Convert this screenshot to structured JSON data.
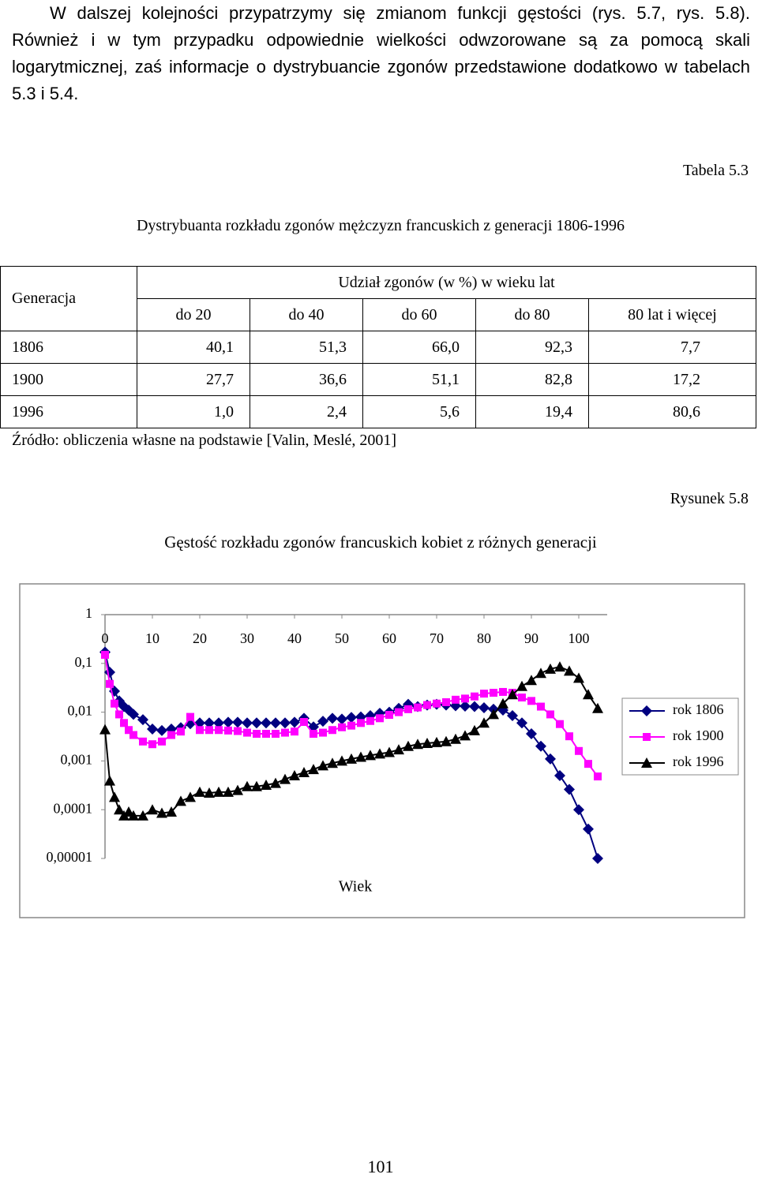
{
  "paragraph": "W dalszej kolejności przypatrzymy się zmianom funkcji gęstości (rys. 5.7, rys. 5.8). Również i w tym przypadku odpowiednie wielkości odwzorowane są za pomocą skali logarytmicznej, zaś informacje o dystrybuancie zgonów przedstawione dodatkowo w tabelach 5.3 i 5.4.",
  "table_label": "Tabela 5.3",
  "table_title": "Dystrybuanta rozkładu zgonów mężczyzn francuskich z generacji 1806-1996",
  "table": {
    "header": {
      "generation": "Generacja",
      "group": "Udział zgonów (w %) w wieku lat",
      "columns": [
        "do 20",
        "do 40",
        "do 60",
        "do 80",
        "80 lat i więcej"
      ]
    },
    "rows": [
      [
        "1806",
        "40,1",
        "51,3",
        "66,0",
        "92,3",
        "7,7"
      ],
      [
        "1900",
        "27,7",
        "36,6",
        "51,1",
        "82,8",
        "17,2"
      ],
      [
        "1996",
        "1,0",
        "2,4",
        "5,6",
        "19,4",
        "80,6"
      ]
    ]
  },
  "source": "Źródło: obliczenia własne na podstawie [Valin, Meslé, 2001]",
  "figure_label": "Rysunek 5.8",
  "chart_data": {
    "type": "line",
    "title": "Gęstość rozkładu zgonów francuskich kobiet z różnych generacji",
    "xlabel": "Wiek",
    "x": [
      0,
      1,
      2,
      3,
      4,
      5,
      6,
      8,
      10,
      12,
      14,
      16,
      18,
      20,
      22,
      24,
      26,
      28,
      30,
      32,
      34,
      36,
      38,
      40,
      42,
      44,
      46,
      48,
      50,
      52,
      54,
      56,
      58,
      60,
      62,
      64,
      66,
      68,
      70,
      72,
      74,
      76,
      78,
      80,
      82,
      84,
      86,
      88,
      90,
      92,
      94,
      96,
      98,
      100,
      102,
      104
    ],
    "xlim": [
      0,
      106
    ],
    "xticks": [
      0,
      10,
      20,
      30,
      40,
      50,
      60,
      70,
      80,
      90,
      100
    ],
    "ylim": [
      1e-05,
      1
    ],
    "log_y": true,
    "yticks": [
      1,
      {
        "value": 0.1,
        "label": "0,1"
      },
      {
        "value": 0.01,
        "label": "0,01"
      },
      {
        "value": 0.001,
        "label": "0,001"
      },
      {
        "value": 0.0001,
        "label": "0,0001"
      },
      {
        "value": 1e-05,
        "label": "0,00001"
      }
    ],
    "legend": "right",
    "series": [
      {
        "name": "rok 1806",
        "color": "#000080",
        "marker": "diamond",
        "values": [
          0.17,
          0.066,
          0.027,
          0.017,
          0.013,
          0.011,
          0.009,
          0.007,
          0.0045,
          0.0042,
          0.0045,
          0.0048,
          0.0058,
          0.006,
          0.006,
          0.006,
          0.0062,
          0.0062,
          0.006,
          0.006,
          0.006,
          0.006,
          0.006,
          0.0062,
          0.0075,
          0.005,
          0.0065,
          0.0075,
          0.0072,
          0.0078,
          0.008,
          0.0085,
          0.0095,
          0.01,
          0.012,
          0.0145,
          0.013,
          0.014,
          0.0145,
          0.014,
          0.0135,
          0.0133,
          0.013,
          0.0123,
          0.0115,
          0.011,
          0.0085,
          0.006,
          0.0036,
          0.002,
          0.0011,
          0.0005,
          0.00026,
          0.0001,
          4e-05,
          1e-05
        ]
      },
      {
        "name": "rok 1900",
        "color": "#ff00ff",
        "marker": "square",
        "values": [
          0.15,
          0.038,
          0.015,
          0.009,
          0.006,
          0.0043,
          0.0034,
          0.0025,
          0.0022,
          0.0025,
          0.0034,
          0.004,
          0.008,
          0.0043,
          0.0043,
          0.0043,
          0.0042,
          0.0041,
          0.0038,
          0.0036,
          0.0036,
          0.0036,
          0.0038,
          0.004,
          0.0063,
          0.0036,
          0.0038,
          0.0043,
          0.0049,
          0.0053,
          0.006,
          0.0066,
          0.0075,
          0.0088,
          0.01,
          0.0115,
          0.0125,
          0.014,
          0.015,
          0.016,
          0.018,
          0.019,
          0.021,
          0.024,
          0.025,
          0.026,
          0.025,
          0.02,
          0.017,
          0.013,
          0.009,
          0.0057,
          0.0032,
          0.0016,
          0.00087,
          0.00048
        ]
      },
      {
        "name": "rok 1996",
        "color": "#000000",
        "marker": "triangle",
        "values": [
          0.0044,
          0.00039,
          0.00018,
          0.0001,
          7.5e-05,
          9e-05,
          7.5e-05,
          7.5e-05,
          0.0001,
          8.5e-05,
          9e-05,
          0.00015,
          0.00018,
          0.00023,
          0.00022,
          0.00023,
          0.00023,
          0.00025,
          0.0003,
          0.0003,
          0.00032,
          0.00035,
          0.00042,
          0.0005,
          0.00058,
          0.00067,
          0.0008,
          0.0009,
          0.001,
          0.0011,
          0.0012,
          0.0013,
          0.0014,
          0.0015,
          0.0017,
          0.002,
          0.0022,
          0.0023,
          0.0024,
          0.0025,
          0.0028,
          0.0033,
          0.0042,
          0.006,
          0.009,
          0.015,
          0.023,
          0.034,
          0.045,
          0.063,
          0.077,
          0.085,
          0.07,
          0.05,
          0.023,
          0.012
        ]
      }
    ]
  },
  "page_number": "101"
}
